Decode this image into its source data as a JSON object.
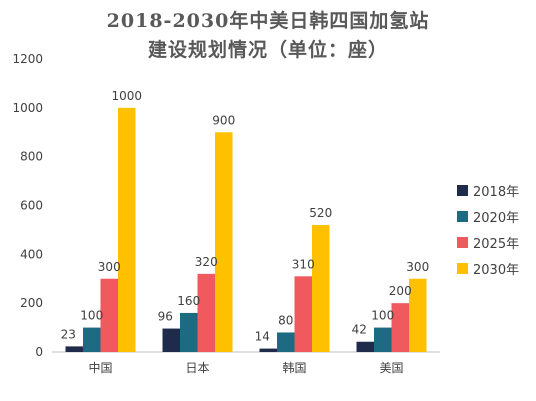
{
  "chart_data": {
    "type": "bar",
    "title": "2018-2030年中美日韩四国加氢站",
    "subtitle": "建设规划情况（单位：座）",
    "xlabel": "",
    "ylabel": "",
    "ylim": [
      0,
      1200
    ],
    "yticks": [
      0,
      200,
      400,
      600,
      800,
      1000,
      1200
    ],
    "grid": false,
    "legend": "right",
    "categories": [
      "中国",
      "日本",
      "韩国",
      "美国"
    ],
    "series": [
      {
        "name": "2018年",
        "color": "#1F2B4A",
        "values": [
          23,
          96,
          14,
          42
        ]
      },
      {
        "name": "2020年",
        "color": "#1D6B82",
        "values": [
          100,
          160,
          80,
          100
        ]
      },
      {
        "name": "2025年",
        "color": "#F05A5E",
        "values": [
          300,
          320,
          310,
          200
        ]
      },
      {
        "name": "2030年",
        "color": "#FFC000",
        "values": [
          1000,
          900,
          520,
          300
        ]
      }
    ]
  }
}
